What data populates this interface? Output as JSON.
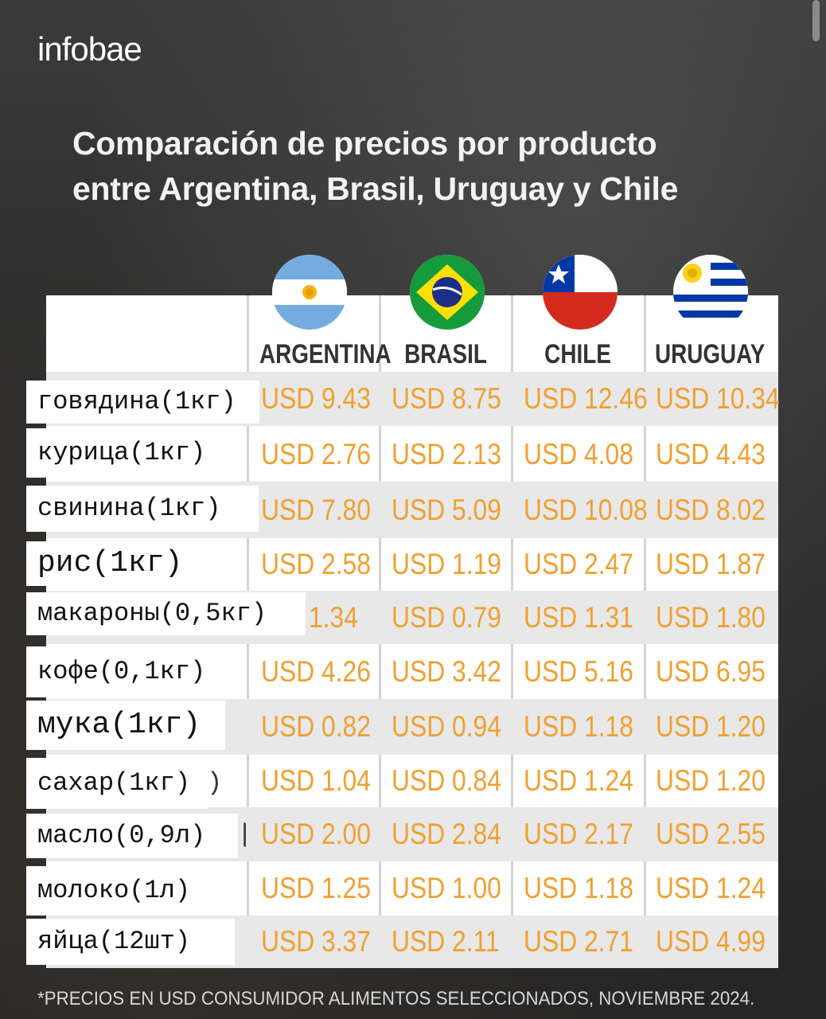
{
  "brand": "infobae",
  "title": {
    "line1": "Comparación de precios por producto",
    "line2": "entre Argentina, Brasil, Uruguay y Chile"
  },
  "countries": [
    "ARGENTINA",
    "BRASIL",
    "CHILE",
    "URUGUAY"
  ],
  "flag_icons": [
    "argentina-flag-icon",
    "brazil-flag-icon",
    "chile-flag-icon",
    "uruguay-flag-icon"
  ],
  "rows": [
    {
      "label": "говядина(1кг)",
      "prices": [
        "USD 9.43",
        "USD 8.75",
        "USD 12.46",
        "USD 10.34"
      ]
    },
    {
      "label": "курица(1кг)",
      "prices": [
        "USD 2.76",
        "USD 2.13",
        "USD 4.08",
        "USD 4.43"
      ]
    },
    {
      "label": "свинина(1кг)",
      "prices": [
        "USD 7.80",
        "USD 5.09",
        "USD 10.08",
        "USD 8.02"
      ]
    },
    {
      "label": "рис(1кг)",
      "prices": [
        "USD 2.58",
        "USD 1.19",
        "USD 2.47",
        "USD 1.87"
      ]
    },
    {
      "label": "макароны(0,5кг)",
      "prices": [
        "1.34",
        "USD 0.79",
        "USD 1.31",
        "USD 1.80"
      ]
    },
    {
      "label": "кофе(0,1кг)",
      "prices": [
        "USD 4.26",
        "USD 3.42",
        "USD 5.16",
        "USD 6.95"
      ]
    },
    {
      "label": "мука(1кг)",
      "prices": [
        "USD 0.82",
        "USD 0.94",
        "USD 1.18",
        "USD 1.20"
      ]
    },
    {
      "label": "сахар(1кг)",
      "prices": [
        "USD 1.04",
        "USD 0.84",
        "USD 1.24",
        "USD 1.20"
      ]
    },
    {
      "label": "масло(0,9л)",
      "prices": [
        "USD 2.00",
        "USD 2.84",
        "USD 2.17",
        "USD 2.55"
      ]
    },
    {
      "label": "молоко(1л)",
      "prices": [
        "USD 1.25",
        "USD 1.00",
        "USD 1.18",
        "USD 1.24"
      ]
    },
    {
      "label": "яйца(12шт)",
      "prices": [
        "USD 3.37",
        "USD 2.11",
        "USD 2.71",
        "USD 4.99"
      ]
    }
  ],
  "footnote": "*PRECIOS EN USD CONSUMIDOR ALIMENTOS SELECCIONADOS, NOVIEMBRE 2024.",
  "colors": {
    "price": "#f0a030",
    "background": "#2b2b2b",
    "table": "#ffffff",
    "row_shade": "#e8e8e8"
  }
}
